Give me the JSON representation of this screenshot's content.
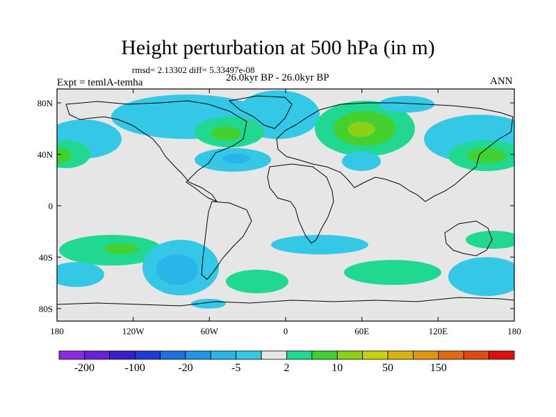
{
  "title": "Height perturbation at 500 hPa (in m)",
  "stats": "rmsd= 2.13302 diff= 5.33497e-08",
  "expt": "Expt = temlA-temha",
  "period": "26.0kyr BP - 26.0kyr BP",
  "season": "ANN",
  "lat_ticks": [
    "80N",
    "40N",
    "0",
    "40S",
    "80S"
  ],
  "lon_ticks": [
    "180",
    "120W",
    "60W",
    "0",
    "60E",
    "120E",
    "180"
  ],
  "colorbar": {
    "colors": [
      "#8a2be2",
      "#6a1fd8",
      "#3a1fd0",
      "#1f3ad8",
      "#1e6fe0",
      "#1e96e6",
      "#2ab4e8",
      "#34c8e6",
      "#e6e6e6",
      "#20d890",
      "#44d030",
      "#8ed018",
      "#c8d010",
      "#d8b410",
      "#e09410",
      "#e06a10",
      "#e04a10",
      "#e01010"
    ],
    "labels": [
      "-200",
      "-100",
      "-20",
      "-5",
      "2",
      "10",
      "50",
      "150"
    ]
  }
}
